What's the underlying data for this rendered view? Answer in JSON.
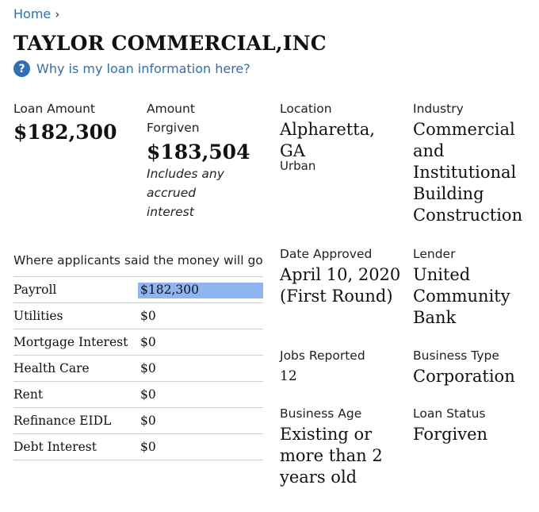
{
  "breadcrumb": {
    "home": "Home",
    "separator": "›"
  },
  "company": {
    "name": "TAYLOR COMMERCIAL,INC"
  },
  "help": {
    "icon": "?",
    "link": "Why is my loan information here?"
  },
  "loan_amount": {
    "label": "Loan Amount",
    "value": "$182,300"
  },
  "amount_forgiven": {
    "label_line1": "Amount",
    "label_line2": "Forgiven",
    "value": "$183,504",
    "note_line1": "Includes any",
    "note_line2": "accrued",
    "note_line3": "interest"
  },
  "location": {
    "label": "Location",
    "line1": "Alpharetta,",
    "line2": "GA",
    "area": "Urban"
  },
  "industry": {
    "label": "Industry",
    "lines": [
      "Commercial",
      "and",
      "Institutional",
      "Building",
      "Construction"
    ]
  },
  "spending": {
    "heading": "Where applicants said the money will go",
    "rows": [
      {
        "category": "Payroll",
        "amount": "$182,300",
        "fraction": 1
      },
      {
        "category": "Utilities",
        "amount": "$0",
        "fraction": 0
      },
      {
        "category": "Mortgage Interest",
        "amount": "$0",
        "fraction": 0
      },
      {
        "category": "Health Care",
        "amount": "$0",
        "fraction": 0
      },
      {
        "category": "Rent",
        "amount": "$0",
        "fraction": 0
      },
      {
        "category": "Refinance EIDL",
        "amount": "$0",
        "fraction": 0
      },
      {
        "category": "Debt Interest",
        "amount": "$0",
        "fraction": 0
      }
    ]
  },
  "date_approved": {
    "label": "Date Approved",
    "line1": "April 10, 2020",
    "line2": "(First Round)"
  },
  "lender": {
    "label": "Lender",
    "lines": [
      "United",
      "Community",
      "Bank"
    ]
  },
  "jobs": {
    "label": "Jobs Reported",
    "value": "12"
  },
  "business_type": {
    "label": "Business Type",
    "value": "Corporation"
  },
  "business_age": {
    "label": "Business Age",
    "lines": [
      "Existing or",
      "more than 2",
      "years old"
    ]
  },
  "loan_status": {
    "label": "Loan Status",
    "value": "Forgiven"
  },
  "colors": {
    "link": "#2f6fb5",
    "bar": "#8fb5f0"
  }
}
